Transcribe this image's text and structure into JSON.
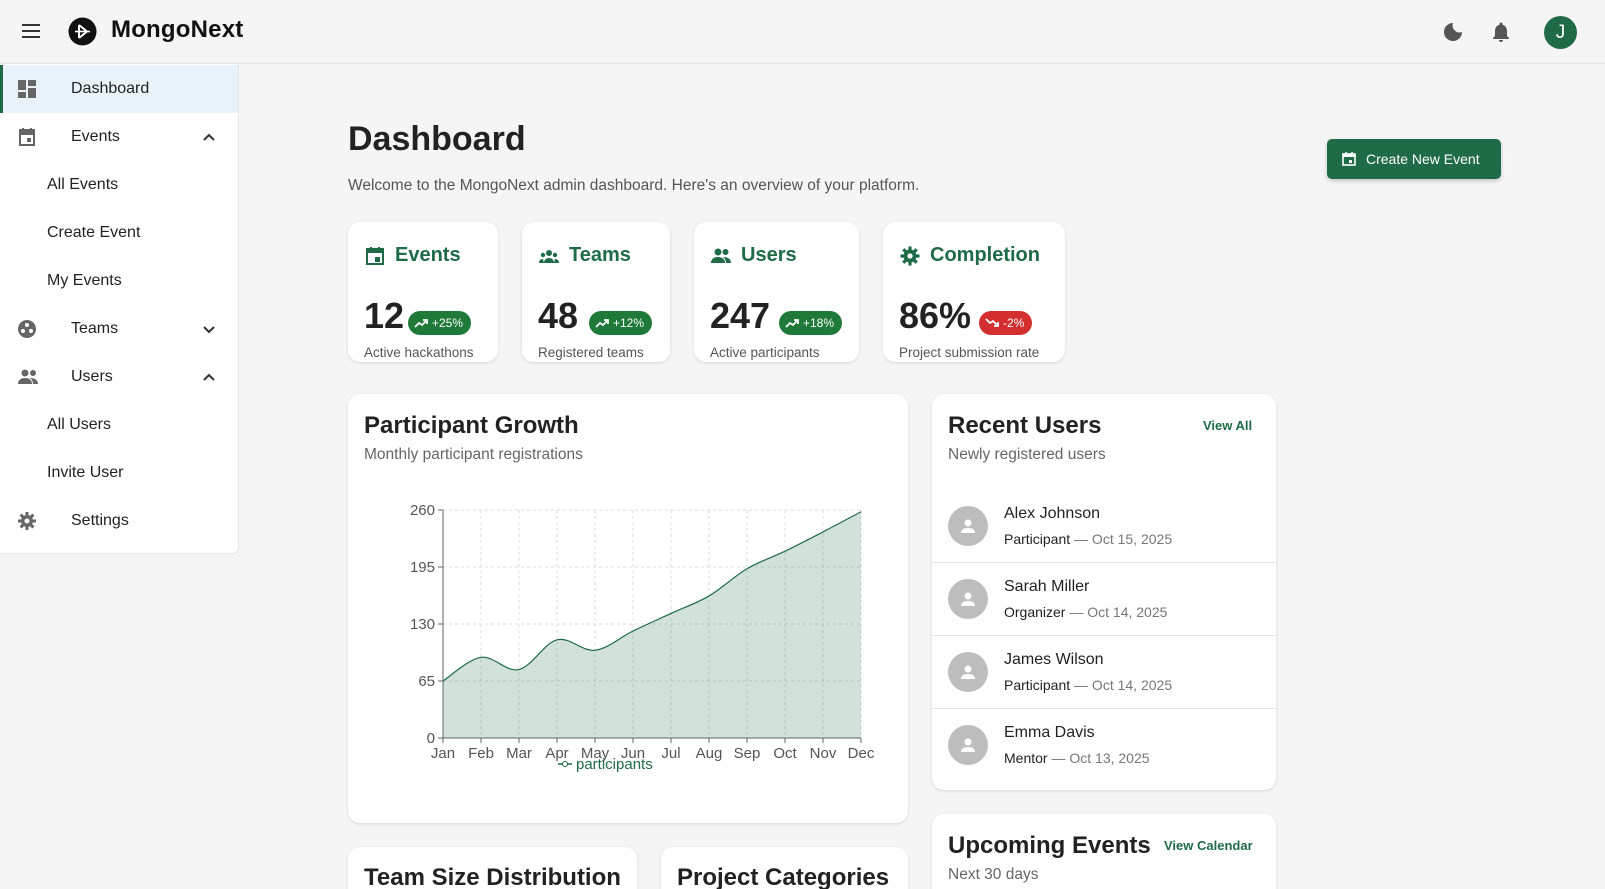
{
  "app": {
    "brand": "MongoNext",
    "avatar_initial": "J"
  },
  "icons": {
    "menu": "menu-icon",
    "logo": "logo-icon",
    "theme": "moon-icon",
    "notifications": "bell-icon"
  },
  "colors": {
    "accent": "#1f6b47",
    "success": "#1f7a3a",
    "danger": "#d32f2f"
  },
  "sidebar": {
    "items": [
      {
        "label": "Dashboard",
        "icon": "dashboard-icon",
        "active": true
      },
      {
        "label": "Events",
        "icon": "calendar-icon",
        "expanded": true
      },
      {
        "label": "All Events"
      },
      {
        "label": "Create Event"
      },
      {
        "label": "My Events"
      },
      {
        "label": "Teams",
        "icon": "teams-icon",
        "expanded": false
      },
      {
        "label": "Users",
        "icon": "users-icon",
        "expanded": true
      },
      {
        "label": "All Users"
      },
      {
        "label": "Invite User"
      },
      {
        "label": "Settings",
        "icon": "gear-icon"
      }
    ]
  },
  "header": {
    "title": "Dashboard",
    "subtitle": "Welcome to the MongoNext admin dashboard. Here's an overview of your platform.",
    "create_button": "Create New Event"
  },
  "stats": [
    {
      "title": "Events",
      "value": "12",
      "change": "+25%",
      "trend": "up",
      "caption": "Active hackathons",
      "icon": "calendar-icon"
    },
    {
      "title": "Teams",
      "value": "48",
      "change": "+12%",
      "trend": "up",
      "caption": "Registered teams",
      "icon": "teams-icon"
    },
    {
      "title": "Users",
      "value": "247",
      "change": "+18%",
      "trend": "up",
      "caption": "Active participants",
      "icon": "users-icon"
    },
    {
      "title": "Completion",
      "value": "86%",
      "change": "-2%",
      "trend": "down",
      "caption": "Project submission rate",
      "icon": "gear-icon"
    }
  ],
  "growth": {
    "title": "Participant Growth",
    "subtitle": "Monthly participant registrations"
  },
  "chart_data": {
    "type": "area",
    "title": "Participant Growth",
    "subtitle": "Monthly participant registrations",
    "categories": [
      "Jan",
      "Feb",
      "Mar",
      "Apr",
      "May",
      "Jun",
      "Jul",
      "Aug",
      "Sep",
      "Oct",
      "Nov",
      "Dec"
    ],
    "series": [
      {
        "name": "participants",
        "values": [
          65,
          92,
          78,
          112,
          100,
          122,
          142,
          162,
          193,
          213,
          235,
          258
        ]
      }
    ],
    "yticks": [
      0,
      65,
      130,
      195,
      260
    ],
    "ylim": [
      0,
      260
    ],
    "grid": true,
    "legend": "bottom"
  },
  "recent_users": {
    "title": "Recent Users",
    "subtitle": "Newly registered users",
    "link": "View All",
    "users": [
      {
        "name": "Alex Johnson",
        "role": "Participant",
        "date": "— Oct 15, 2025"
      },
      {
        "name": "Sarah Miller",
        "role": "Organizer",
        "date": "— Oct 14, 2025"
      },
      {
        "name": "James Wilson",
        "role": "Participant",
        "date": "— Oct 14, 2025"
      },
      {
        "name": "Emma Davis",
        "role": "Mentor",
        "date": "— Oct 13, 2025"
      }
    ]
  },
  "upcoming": {
    "title": "Upcoming Events",
    "subtitle": "Next 30 days",
    "link": "View Calendar"
  },
  "team_size": {
    "title": "Team Size Distribution"
  },
  "categories_card": {
    "title": "Project Categories"
  }
}
